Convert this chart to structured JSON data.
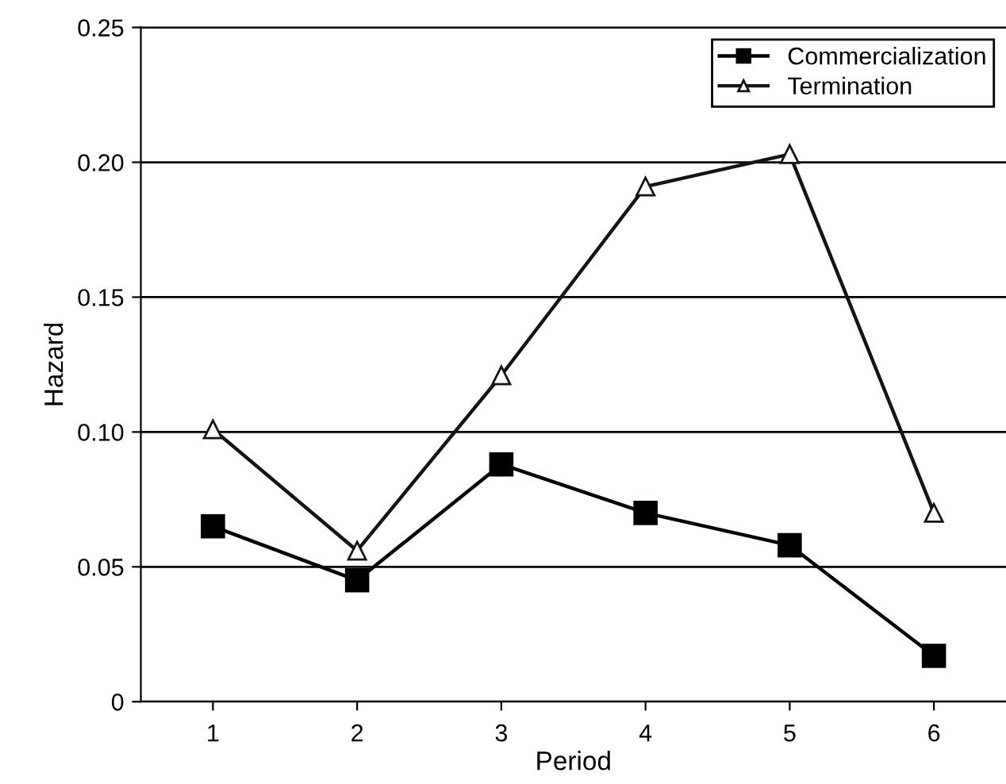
{
  "chart_data": {
    "type": "line",
    "xlabel": "Period",
    "ylabel": "Hazard",
    "categories": [
      "1",
      "2",
      "3",
      "4",
      "5",
      "6"
    ],
    "series": [
      {
        "name": "Commercialization",
        "color": "#000000",
        "marker": "square",
        "values": [
          0.065,
          0.045,
          0.088,
          0.07,
          0.058,
          0.017
        ]
      },
      {
        "name": "Termination",
        "color": "#141414",
        "marker": "triangle",
        "values": [
          0.101,
          0.056,
          0.121,
          0.191,
          0.203,
          0.07
        ]
      }
    ],
    "ylim": [
      0,
      0.25
    ],
    "yticks": [
      {
        "value": 0,
        "label": "0"
      },
      {
        "value": 0.05,
        "label": "0.05"
      },
      {
        "value": 0.1,
        "label": "0.10"
      },
      {
        "value": 0.15,
        "label": "0.15"
      },
      {
        "value": 0.2,
        "label": "0.20"
      },
      {
        "value": 0.25,
        "label": "0.25"
      }
    ],
    "grid": "y",
    "legend": "top right",
    "line_style": "solid"
  }
}
